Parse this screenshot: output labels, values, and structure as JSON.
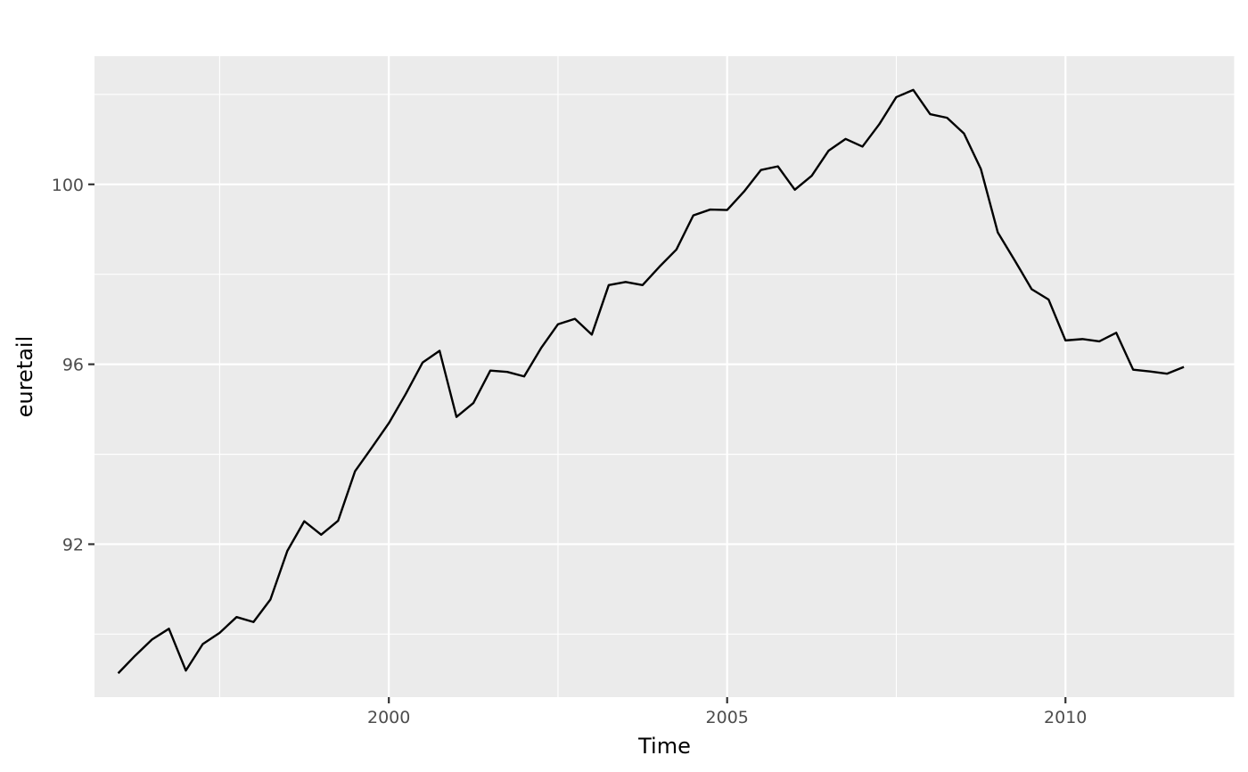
{
  "chart_data": {
    "type": "line",
    "title": "",
    "xlabel": "Time",
    "ylabel": "euretail",
    "xlim": [
      1995.65,
      2012.5
    ],
    "ylim": [
      88.6,
      102.85
    ],
    "x_ticks": [
      2000,
      2005,
      2010
    ],
    "x_tick_labels": [
      "2000",
      "2005",
      "2010"
    ],
    "x_minor_ticks": [
      1997.5,
      2002.5,
      2007.5,
      2012.5
    ],
    "y_ticks": [
      92,
      96,
      100
    ],
    "y_tick_labels": [
      "92",
      "96",
      "100"
    ],
    "y_minor_ticks": [
      90,
      94,
      98,
      102
    ],
    "grid": true,
    "legend": "none",
    "line_color": "#000000",
    "panel_color": "#EBEBEB",
    "series": [
      {
        "x_start": 1996.0,
        "frequency": 4,
        "values": [
          89.13,
          89.52,
          89.88,
          90.12,
          89.19,
          89.78,
          90.03,
          90.38,
          90.27,
          90.77,
          91.85,
          92.51,
          92.21,
          92.52,
          93.62,
          94.15,
          94.69,
          95.34,
          96.04,
          96.3,
          94.83,
          95.14,
          95.86,
          95.83,
          95.73,
          96.36,
          96.89,
          97.01,
          96.66,
          97.76,
          97.83,
          97.76,
          98.17,
          98.55,
          99.31,
          99.44,
          99.43,
          99.84,
          100.32,
          100.4,
          99.88,
          100.19,
          100.75,
          101.01,
          100.84,
          101.34,
          101.94,
          102.1,
          101.56,
          101.48,
          101.13,
          100.34,
          98.93,
          98.31,
          97.67,
          97.44,
          96.53,
          96.56,
          96.51,
          96.7,
          95.88,
          95.84,
          95.79,
          95.94
        ]
      }
    ]
  }
}
